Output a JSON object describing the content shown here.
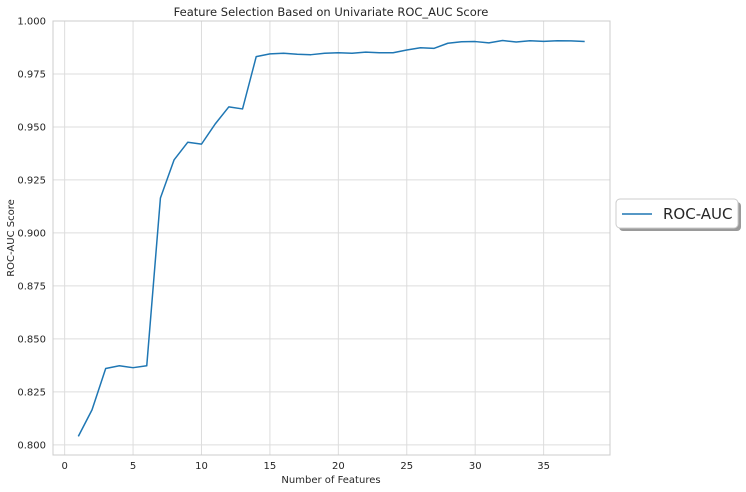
{
  "chart_data": {
    "type": "line",
    "title": "Feature Selection Based on Univariate ROC_AUC Score",
    "xlabel": "Number of Features",
    "ylabel": "ROC-AUC Score",
    "xlim": [
      -0.85,
      39.85
    ],
    "ylim": [
      0.7952,
      1.0
    ],
    "xticks": [
      0,
      5,
      10,
      15,
      20,
      25,
      30,
      35
    ],
    "yticks": [
      0.8,
      0.825,
      0.85,
      0.875,
      0.9,
      0.925,
      0.95,
      0.975,
      1.0
    ],
    "ytick_labels": [
      "0.800",
      "0.825",
      "0.850",
      "0.875",
      "0.900",
      "0.925",
      "0.950",
      "0.975",
      "1.000"
    ],
    "grid": true,
    "legend_position": "right",
    "series": [
      {
        "name": "ROC-AUC",
        "color": "#1f77b4",
        "x": [
          1,
          2,
          3,
          4,
          5,
          6,
          7,
          8,
          9,
          10,
          11,
          12,
          13,
          14,
          15,
          16,
          17,
          18,
          19,
          20,
          21,
          22,
          23,
          24,
          25,
          26,
          27,
          28,
          29,
          30,
          31,
          32,
          33,
          34,
          35,
          36,
          37,
          38
        ],
        "y": [
          0.804,
          0.8165,
          0.836,
          0.8373,
          0.8364,
          0.8373,
          0.9165,
          0.9345,
          0.9428,
          0.9419,
          0.9514,
          0.9595,
          0.9585,
          0.9832,
          0.9845,
          0.9848,
          0.9843,
          0.9841,
          0.9848,
          0.985,
          0.9848,
          0.9853,
          0.985,
          0.985,
          0.9863,
          0.9874,
          0.9871,
          0.9895,
          0.9902,
          0.9903,
          0.9897,
          0.9908,
          0.9901,
          0.9907,
          0.9904,
          0.9907,
          0.9906,
          0.9903
        ]
      }
    ]
  }
}
